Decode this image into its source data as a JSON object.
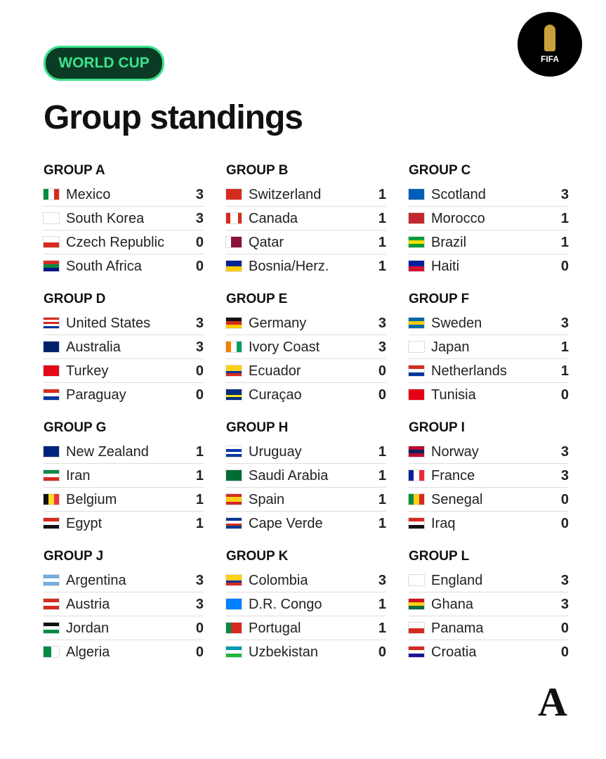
{
  "badge": "WORLD CUP",
  "logo": "FIFA",
  "title": "Group standings",
  "brand": "A",
  "groups": [
    {
      "name": "GROUP A",
      "rows": [
        {
          "team": "Mexico",
          "points": 3
        },
        {
          "team": "South Korea",
          "points": 3
        },
        {
          "team": "Czech Republic",
          "points": 0
        },
        {
          "team": "South Africa",
          "points": 0
        }
      ]
    },
    {
      "name": "GROUP B",
      "rows": [
        {
          "team": "Switzerland",
          "points": 1
        },
        {
          "team": "Canada",
          "points": 1
        },
        {
          "team": "Qatar",
          "points": 1
        },
        {
          "team": "Bosnia/Herz.",
          "points": 1
        }
      ]
    },
    {
      "name": "GROUP C",
      "rows": [
        {
          "team": "Scotland",
          "points": 3
        },
        {
          "team": "Morocco",
          "points": 1
        },
        {
          "team": "Brazil",
          "points": 1
        },
        {
          "team": "Haiti",
          "points": 0
        }
      ]
    },
    {
      "name": "GROUP D",
      "rows": [
        {
          "team": "United States",
          "points": 3
        },
        {
          "team": "Australia",
          "points": 3
        },
        {
          "team": "Turkey",
          "points": 0
        },
        {
          "team": "Paraguay",
          "points": 0
        }
      ]
    },
    {
      "name": "GROUP E",
      "rows": [
        {
          "team": "Germany",
          "points": 3
        },
        {
          "team": "Ivory Coast",
          "points": 3
        },
        {
          "team": "Ecuador",
          "points": 0
        },
        {
          "team": "Curaçao",
          "points": 0
        }
      ]
    },
    {
      "name": "GROUP F",
      "rows": [
        {
          "team": "Sweden",
          "points": 3
        },
        {
          "team": "Japan",
          "points": 1
        },
        {
          "team": "Netherlands",
          "points": 1
        },
        {
          "team": "Tunisia",
          "points": 0
        }
      ]
    },
    {
      "name": "GROUP G",
      "rows": [
        {
          "team": "New Zealand",
          "points": 1
        },
        {
          "team": "Iran",
          "points": 1
        },
        {
          "team": "Belgium",
          "points": 1
        },
        {
          "team": "Egypt",
          "points": 1
        }
      ]
    },
    {
      "name": "GROUP H",
      "rows": [
        {
          "team": "Uruguay",
          "points": 1
        },
        {
          "team": "Saudi Arabia",
          "points": 1
        },
        {
          "team": "Spain",
          "points": 1
        },
        {
          "team": "Cape Verde",
          "points": 1
        }
      ]
    },
    {
      "name": "GROUP I",
      "rows": [
        {
          "team": "Norway",
          "points": 3
        },
        {
          "team": "France",
          "points": 3
        },
        {
          "team": "Senegal",
          "points": 0
        },
        {
          "team": "Iraq",
          "points": 0
        }
      ]
    },
    {
      "name": "GROUP J",
      "rows": [
        {
          "team": "Argentina",
          "points": 3
        },
        {
          "team": "Austria",
          "points": 3
        },
        {
          "team": "Jordan",
          "points": 0
        },
        {
          "team": "Algeria",
          "points": 0
        }
      ]
    },
    {
      "name": "GROUP K",
      "rows": [
        {
          "team": "Colombia",
          "points": 3
        },
        {
          "team": "D.R. Congo",
          "points": 1
        },
        {
          "team": "Portugal",
          "points": 1
        },
        {
          "team": "Uzbekistan",
          "points": 0
        }
      ]
    },
    {
      "name": "GROUP L",
      "rows": [
        {
          "team": "England",
          "points": 3
        },
        {
          "team": "Ghana",
          "points": 3
        },
        {
          "team": "Panama",
          "points": 0
        },
        {
          "team": "Croatia",
          "points": 0
        }
      ]
    }
  ]
}
